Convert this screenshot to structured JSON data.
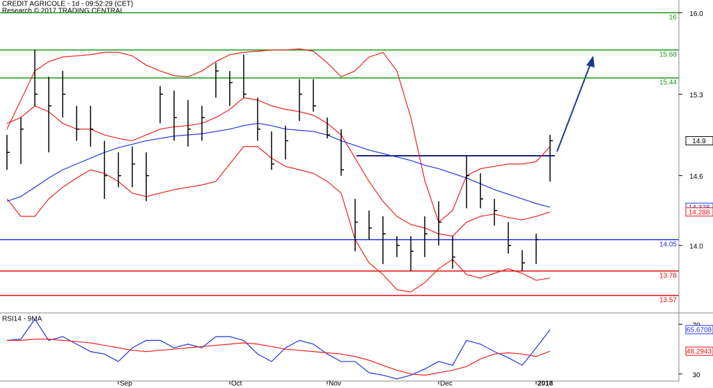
{
  "chart_data": [
    {
      "type": "ohlc",
      "title": "CREDIT AGRICOLE - 1d - 09:52:29 (CET)",
      "subtitle": "Research © 2017 TRADING CENTRAL",
      "high": [
        14.95,
        15.1,
        15.68,
        15.45,
        15.5,
        15.2,
        15.2,
        14.9,
        14.8,
        14.85,
        14.8,
        15.37,
        15.33,
        15.25,
        15.2,
        15.57,
        15.5,
        15.64,
        15.27,
        14.98,
        15.03,
        15.43,
        15.43,
        15.1,
        15.0,
        14.4,
        14.3,
        14.25,
        14.08,
        14.08,
        14.25,
        14.38,
        14.08,
        14.77,
        14.62,
        14.4,
        14.2,
        13.96,
        14.1,
        14.95
      ],
      "low": [
        14.65,
        14.7,
        15.2,
        14.8,
        15.1,
        14.9,
        14.85,
        14.4,
        14.5,
        14.5,
        14.38,
        15.05,
        14.9,
        14.85,
        14.9,
        15.27,
        15.2,
        15.27,
        14.9,
        14.65,
        14.74,
        15.07,
        15.15,
        14.92,
        14.6,
        13.95,
        14.05,
        13.84,
        13.9,
        13.78,
        13.9,
        14.0,
        13.8,
        14.32,
        14.32,
        14.17,
        13.93,
        13.78,
        13.84,
        14.55
      ],
      "close": [
        14.8,
        15.0,
        15.3,
        15.2,
        15.3,
        15.0,
        15.0,
        14.6,
        14.6,
        14.7,
        14.6,
        15.3,
        15.1,
        15.0,
        15.1,
        15.5,
        15.4,
        15.3,
        15.0,
        14.7,
        14.9,
        15.3,
        15.2,
        14.95,
        14.65,
        14.2,
        14.15,
        14.1,
        14.0,
        13.95,
        14.1,
        14.2,
        13.9,
        14.6,
        14.4,
        14.3,
        14.0,
        13.85,
        14.05,
        14.9
      ],
      "series": [
        {
          "color": "#e8221e",
          "values": [
            15.0,
            15.25,
            15.5,
            15.58,
            15.62,
            15.63,
            15.64,
            15.66,
            15.66,
            15.63,
            15.55,
            15.5,
            15.46,
            15.45,
            15.5,
            15.58,
            15.64,
            15.66,
            15.67,
            15.68,
            15.68,
            15.69,
            15.67,
            15.57,
            15.45,
            15.5,
            15.62,
            15.66,
            15.5,
            15.1,
            14.56,
            14.2,
            14.3,
            14.6,
            14.66,
            14.68,
            14.7,
            14.7,
            14.72,
            14.85
          ]
        },
        {
          "color": "#e8221e",
          "values": [
            15.05,
            15.1,
            15.2,
            15.15,
            15.05,
            15.0,
            15.0,
            14.95,
            14.92,
            14.9,
            14.95,
            15.0,
            15.02,
            15.03,
            15.05,
            15.1,
            15.17,
            15.27,
            15.25,
            15.2,
            15.17,
            15.15,
            15.12,
            15.05,
            14.95,
            14.75,
            14.55,
            14.38,
            14.25,
            14.18,
            14.15,
            14.1,
            14.08,
            14.2,
            14.25,
            14.27,
            14.24,
            14.22,
            14.25,
            14.288
          ]
        },
        {
          "color": "#e8221e",
          "values": [
            14.4,
            14.25,
            14.25,
            14.4,
            14.5,
            14.58,
            14.65,
            14.62,
            14.55,
            14.45,
            14.42,
            14.45,
            14.48,
            14.5,
            14.52,
            14.55,
            14.7,
            14.85,
            14.85,
            14.75,
            14.68,
            14.65,
            14.62,
            14.55,
            14.45,
            14.05,
            13.85,
            13.75,
            13.62,
            13.6,
            13.68,
            13.8,
            13.88,
            13.75,
            13.72,
            13.76,
            13.8,
            13.76,
            13.7,
            13.72
          ]
        },
        {
          "color": "#2233dd",
          "values": [
            14.38,
            14.42,
            14.5,
            14.58,
            14.65,
            14.7,
            14.75,
            14.8,
            14.84,
            14.87,
            14.9,
            14.92,
            14.94,
            14.95,
            14.96,
            14.98,
            15.0,
            15.03,
            15.05,
            15.03,
            15.0,
            14.99,
            14.98,
            14.95,
            14.9,
            14.86,
            14.82,
            14.79,
            14.76,
            14.73,
            14.69,
            14.66,
            14.62,
            14.58,
            14.53,
            14.48,
            14.44,
            14.4,
            14.36,
            14.328
          ]
        }
      ],
      "levels": [
        {
          "value": 16,
          "color": "#1a9a1a"
        },
        {
          "value": 15.68,
          "color": "#1a9a1a"
        },
        {
          "value": 15.44,
          "color": "#1a9a1a"
        },
        {
          "value": 14.05,
          "color": "#2233dd"
        },
        {
          "value": 13.78,
          "color": "#e01010"
        },
        {
          "value": 13.57,
          "color": "#e01010"
        }
      ],
      "last_labels": [
        {
          "value": 14.9,
          "color": "#000000"
        },
        {
          "value": 14.328,
          "color": "#2233dd"
        },
        {
          "value": 14.288,
          "color": "#e01010"
        }
      ],
      "ylim": [
        13.42,
        16.11
      ],
      "yticks": [
        {
          "value": 16,
          "label": "16.0"
        },
        15.3,
        14.6,
        {
          "value": 14,
          "label": "14.0"
        }
      ]
    },
    {
      "type": "line",
      "title": "RSI14 - 9MA",
      "categories": [
        null,
        null,
        null,
        null,
        null,
        null,
        null,
        null,
        "Sep",
        null,
        null,
        null,
        null,
        null,
        null,
        null,
        "Oct",
        null,
        null,
        null,
        null,
        null,
        null,
        "Nov",
        null,
        null,
        null,
        null,
        null,
        null,
        null,
        "Dec",
        null,
        null,
        null,
        null,
        null,
        null,
        "2018",
        null
      ],
      "series": [
        {
          "color": "#2233dd",
          "values": [
            57,
            58,
            74,
            57,
            60,
            54,
            48,
            46,
            40,
            51,
            57,
            57,
            51,
            54,
            51,
            60,
            60,
            57,
            46,
            40,
            51,
            57,
            54,
            46,
            40,
            40,
            31,
            29,
            26,
            29,
            34,
            40,
            37,
            57,
            54,
            48,
            43,
            37,
            51,
            65.6708
          ]
        },
        {
          "color": "#e8221e",
          "values": [
            57,
            57,
            58,
            58,
            57,
            56,
            55,
            53,
            51,
            49,
            48,
            49,
            50,
            51,
            52,
            53,
            54,
            55,
            54,
            52,
            50,
            49,
            48,
            47,
            46,
            44,
            41,
            37,
            33,
            30,
            29,
            31,
            33,
            36,
            42,
            46,
            47,
            46,
            44,
            48.2943
          ]
        }
      ],
      "last_labels": [
        {
          "value": 65.6708,
          "color": "#2233dd"
        },
        {
          "value": 48.2943,
          "color": "#e01010"
        }
      ],
      "ylim": [
        24.3,
        79.1
      ],
      "yticks": [
        30,
        70
      ]
    }
  ]
}
